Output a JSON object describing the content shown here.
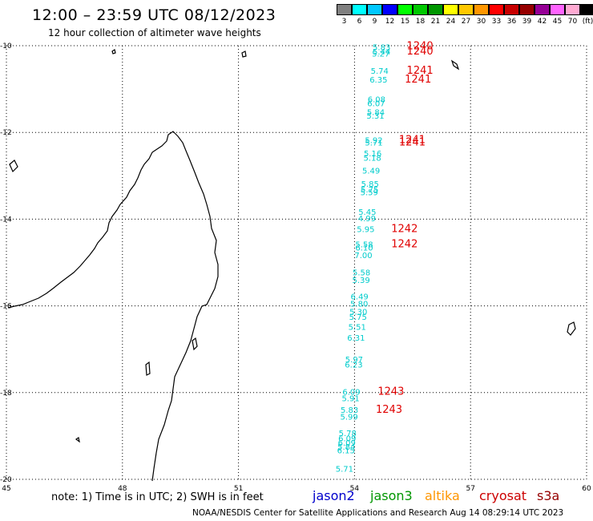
{
  "header": {
    "title": "12:00 – 23:59 UTC 08/12/2023",
    "subtitle": "12 hour collection of altimeter wave heights"
  },
  "color_scale": {
    "colors": [
      "#808080",
      "#00ffff",
      "#00c8ff",
      "#0000ff",
      "#00ff00",
      "#00c800",
      "#009600",
      "#ffff00",
      "#ffc800",
      "#ff9600",
      "#ff0000",
      "#c80000",
      "#960000",
      "#960096",
      "#ff64ff",
      "#ffaad2",
      "#000000"
    ],
    "labels": [
      "3",
      "6",
      "9",
      "12",
      "15",
      "18",
      "21",
      "24",
      "27",
      "30",
      "33",
      "36",
      "39",
      "42",
      "45",
      "70",
      "(ft)"
    ]
  },
  "axes": {
    "lat_labels": [
      "-10",
      "-12",
      "-14",
      "-16",
      "-18",
      "-20"
    ],
    "lon_labels": [
      "45",
      "48",
      "51",
      "54",
      "57",
      "60"
    ]
  },
  "swh_values": [
    {
      "text": "5.83",
      "lat": -10.1,
      "lon": 54.7
    },
    {
      "text": "5.44",
      "lat": -10.2,
      "lon": 54.7
    },
    {
      "text": "5.27",
      "lat": -10.25,
      "lon": 54.68
    },
    {
      "text": "5.74",
      "lat": -10.65,
      "lon": 54.65
    },
    {
      "text": "6.35",
      "lat": -10.85,
      "lon": 54.62
    },
    {
      "text": "6.08",
      "lat": -11.3,
      "lon": 54.57
    },
    {
      "text": "6.07",
      "lat": -11.4,
      "lon": 54.56
    },
    {
      "text": "5.84",
      "lat": -11.6,
      "lon": 54.55
    },
    {
      "text": "5.31",
      "lat": -11.68,
      "lon": 54.54
    },
    {
      "text": "5.92",
      "lat": -12.25,
      "lon": 54.5
    },
    {
      "text": "5.71",
      "lat": -12.3,
      "lon": 54.5
    },
    {
      "text": "5.16",
      "lat": -12.55,
      "lon": 54.47
    },
    {
      "text": "5.18",
      "lat": -12.65,
      "lon": 54.46
    },
    {
      "text": "5.49",
      "lat": -12.95,
      "lon": 54.43
    },
    {
      "text": "5.85",
      "lat": -13.25,
      "lon": 54.4
    },
    {
      "text": "5.75",
      "lat": -13.38,
      "lon": 54.39
    },
    {
      "text": "5.59",
      "lat": -13.45,
      "lon": 54.38
    },
    {
      "text": "5.45",
      "lat": -13.9,
      "lon": 54.33
    },
    {
      "text": "4.99",
      "lat": -14.05,
      "lon": 54.32
    },
    {
      "text": "5.95",
      "lat": -14.3,
      "lon": 54.29
    },
    {
      "text": "5.58",
      "lat": -14.65,
      "lon": 54.25
    },
    {
      "text": "6.10",
      "lat": -14.72,
      "lon": 54.25
    },
    {
      "text": "7.00",
      "lat": -14.9,
      "lon": 54.23
    },
    {
      "text": "5.58",
      "lat": -15.3,
      "lon": 54.18
    },
    {
      "text": "5.39",
      "lat": -15.47,
      "lon": 54.17
    },
    {
      "text": "6.49",
      "lat": -15.85,
      "lon": 54.13
    },
    {
      "text": "5.80",
      "lat": -16.02,
      "lon": 54.12
    },
    {
      "text": "5.30",
      "lat": -16.2,
      "lon": 54.1
    },
    {
      "text": "5.75",
      "lat": -16.32,
      "lon": 54.09
    },
    {
      "text": "5.51",
      "lat": -16.55,
      "lon": 54.07
    },
    {
      "text": "6.31",
      "lat": -16.8,
      "lon": 54.04
    },
    {
      "text": "5.97",
      "lat": -17.3,
      "lon": 53.99
    },
    {
      "text": "6.23",
      "lat": -17.42,
      "lon": 53.98
    },
    {
      "text": "6.09",
      "lat": -18.05,
      "lon": 53.92
    },
    {
      "text": "5.91",
      "lat": -18.2,
      "lon": 53.9
    },
    {
      "text": "5.83",
      "lat": -18.47,
      "lon": 53.87
    },
    {
      "text": "5.99",
      "lat": -18.62,
      "lon": 53.86
    },
    {
      "text": "5.78",
      "lat": -19.0,
      "lon": 53.82
    },
    {
      "text": "6.09",
      "lat": -19.12,
      "lon": 53.81
    },
    {
      "text": "6.09",
      "lat": -19.22,
      "lon": 53.8
    },
    {
      "text": "5.84",
      "lat": -19.32,
      "lon": 53.79
    },
    {
      "text": "6.15",
      "lat": -19.4,
      "lon": 53.78
    },
    {
      "text": "5.71",
      "lat": -19.82,
      "lon": 53.74
    }
  ],
  "time_labels": [
    {
      "text": "1240",
      "lat": -10.08,
      "lon": 55.35
    },
    {
      "text": "1240",
      "lat": -10.2,
      "lon": 55.35
    },
    {
      "text": "1241",
      "lat": -10.65,
      "lon": 55.35
    },
    {
      "text": "1241",
      "lat": -10.85,
      "lon": 55.3
    },
    {
      "text": "1241",
      "lat": -12.25,
      "lon": 55.15
    },
    {
      "text": "1241",
      "lat": -12.3,
      "lon": 55.15
    },
    {
      "text": "1242",
      "lat": -14.3,
      "lon": 54.95
    },
    {
      "text": "1242",
      "lat": -14.65,
      "lon": 54.95
    },
    {
      "text": "1243",
      "lat": -18.05,
      "lon": 54.6
    },
    {
      "text": "1243",
      "lat": -18.47,
      "lon": 54.55
    }
  ],
  "note": "note:  1) Time is in UTC; 2) SWH is in feet",
  "satellites": [
    {
      "name": "jason2",
      "color": "#0000cc"
    },
    {
      "name": "jason3",
      "color": "#009600"
    },
    {
      "name": "altika",
      "color": "#ff9600"
    },
    {
      "name": "cryosat",
      "color": "#cc0000"
    },
    {
      "name": "s3a",
      "color": "#960000"
    }
  ],
  "footer": "NOAA/NESDIS Center for Satellite Applications and Research     Aug 14 08:29:14 UTC 2023"
}
